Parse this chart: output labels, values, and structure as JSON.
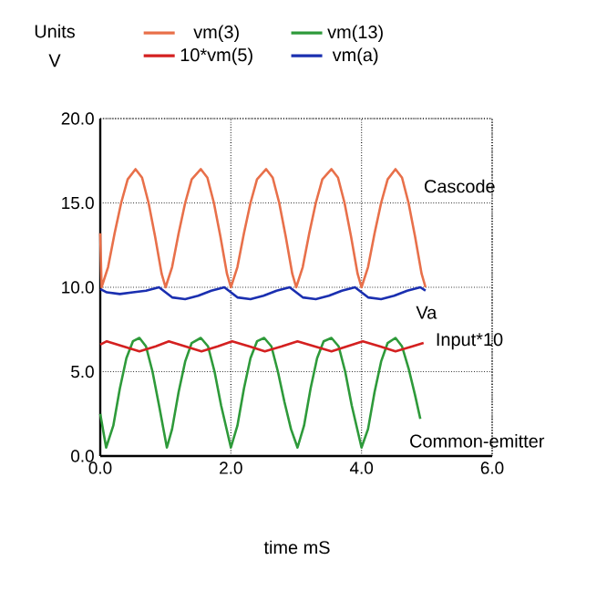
{
  "chart_data": {
    "type": "line",
    "xlabel": "time mS",
    "ylabel": "Units V",
    "xlim": [
      0,
      6
    ],
    "ylim": [
      0,
      20
    ],
    "xticks": [
      {
        "value": 0,
        "label": "0.0"
      },
      {
        "value": 2,
        "label": "2.0"
      },
      {
        "value": 4,
        "label": "4.0"
      },
      {
        "value": 6,
        "label": "6.0"
      }
    ],
    "yticks": [
      {
        "value": 0,
        "label": "0.0"
      },
      {
        "value": 5,
        "label": "5.0"
      },
      {
        "value": 10,
        "label": "10.0"
      },
      {
        "value": 15,
        "label": "15.0"
      },
      {
        "value": 20,
        "label": "20.0"
      }
    ],
    "grid": true,
    "legend": "top",
    "marker": "none",
    "line_style": "solid",
    "annotations": [
      "Cascode",
      "Va",
      "Input*10",
      "Common-emitter"
    ],
    "series": [
      {
        "name": "vm(3)",
        "color": "#e8704a",
        "x": [
          0,
          0.02,
          0.12,
          0.22,
          0.32,
          0.42,
          0.54,
          0.64,
          0.74,
          0.84,
          0.94,
          1.0,
          1.1,
          1.2,
          1.3,
          1.4,
          1.54,
          1.64,
          1.74,
          1.84,
          1.94,
          2.0,
          2.1,
          2.2,
          2.3,
          2.4,
          2.54,
          2.64,
          2.74,
          2.84,
          2.94,
          3.0,
          3.1,
          3.2,
          3.3,
          3.4,
          3.54,
          3.64,
          3.74,
          3.84,
          3.94,
          4.0,
          4.1,
          4.2,
          4.3,
          4.4,
          4.52,
          4.62,
          4.72,
          4.82,
          4.92,
          4.98
        ],
        "values": [
          13.2,
          10.0,
          11.2,
          13.2,
          15.0,
          16.4,
          17.0,
          16.5,
          15.0,
          13.0,
          10.8,
          10.0,
          11.2,
          13.2,
          15.0,
          16.4,
          17.0,
          16.5,
          15.0,
          13.0,
          10.8,
          10.0,
          11.2,
          13.2,
          15.0,
          16.4,
          17.0,
          16.5,
          15.0,
          13.0,
          10.8,
          10.0,
          11.2,
          13.2,
          15.0,
          16.4,
          17.0,
          16.5,
          15.0,
          13.0,
          10.8,
          10.0,
          11.2,
          13.2,
          15.0,
          16.4,
          17.0,
          16.5,
          15.0,
          13.0,
          10.8,
          10.0
        ]
      },
      {
        "name": "vm(13)",
        "color": "#2e9a3a",
        "x": [
          0,
          0.09,
          0.2,
          0.3,
          0.4,
          0.5,
          0.6,
          0.7,
          0.8,
          0.9,
          1.02,
          1.1,
          1.2,
          1.3,
          1.4,
          1.54,
          1.65,
          1.75,
          1.85,
          2.0,
          2.1,
          2.2,
          2.3,
          2.4,
          2.51,
          2.62,
          2.72,
          2.82,
          2.92,
          3.02,
          3.12,
          3.22,
          3.32,
          3.42,
          3.54,
          3.65,
          3.75,
          3.85,
          4.0,
          4.1,
          4.2,
          4.3,
          4.4,
          4.52,
          4.62,
          4.72,
          4.82,
          4.9
        ],
        "values": [
          2.5,
          0.5,
          1.8,
          4.0,
          5.8,
          6.8,
          7.0,
          6.5,
          5.0,
          3.0,
          0.5,
          1.6,
          3.8,
          5.6,
          6.7,
          7.0,
          6.5,
          5.0,
          3.0,
          0.5,
          1.8,
          4.0,
          5.8,
          6.8,
          7.0,
          6.5,
          5.0,
          3.2,
          1.6,
          0.5,
          1.8,
          4.0,
          5.8,
          6.8,
          7.0,
          6.5,
          5.0,
          3.0,
          0.5,
          1.6,
          3.8,
          5.6,
          6.7,
          7.0,
          6.5,
          5.2,
          3.6,
          2.2
        ]
      },
      {
        "name": "10*vm(5)",
        "color": "#d42020",
        "x": [
          0,
          0.1,
          0.35,
          0.6,
          0.85,
          1.05,
          1.3,
          1.55,
          1.8,
          2.02,
          2.28,
          2.52,
          2.78,
          3.02,
          3.28,
          3.54,
          3.78,
          4.02,
          4.28,
          4.52,
          4.78,
          4.95
        ],
        "values": [
          6.6,
          6.8,
          6.5,
          6.2,
          6.5,
          6.8,
          6.5,
          6.2,
          6.5,
          6.8,
          6.5,
          6.2,
          6.5,
          6.8,
          6.5,
          6.2,
          6.5,
          6.8,
          6.5,
          6.2,
          6.5,
          6.7
        ]
      },
      {
        "name": "vm(a)",
        "color": "#1a2fb0",
        "x": [
          0,
          0.1,
          0.3,
          0.5,
          0.7,
          0.9,
          1.0,
          1.1,
          1.3,
          1.5,
          1.7,
          1.9,
          2.0,
          2.1,
          2.3,
          2.5,
          2.7,
          2.9,
          3.0,
          3.1,
          3.3,
          3.5,
          3.7,
          3.9,
          4.0,
          4.1,
          4.3,
          4.5,
          4.7,
          4.9,
          4.98
        ],
        "values": [
          9.9,
          9.7,
          9.6,
          9.7,
          9.8,
          10.0,
          9.7,
          9.4,
          9.3,
          9.5,
          9.8,
          10.0,
          9.7,
          9.4,
          9.3,
          9.5,
          9.8,
          10.0,
          9.7,
          9.4,
          9.3,
          9.5,
          9.8,
          10.0,
          9.7,
          9.4,
          9.3,
          9.5,
          9.8,
          10.0,
          9.8
        ]
      }
    ]
  }
}
